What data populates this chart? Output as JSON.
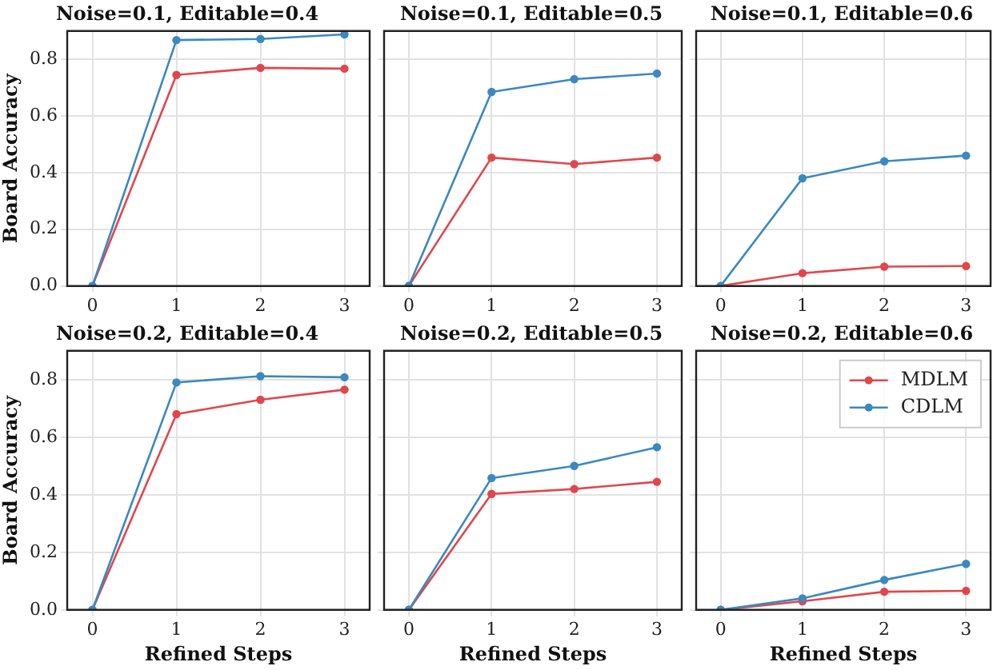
{
  "chart_data": [
    {
      "type": "line",
      "title": "Noise=0.1, Editable=0.4",
      "ylabel": "Board Accuracy",
      "x": [
        0,
        1,
        2,
        3
      ],
      "xlim": [
        -0.3,
        3.3
      ],
      "xticks": [
        0,
        1,
        2,
        3
      ],
      "ylim": [
        0,
        0.9
      ],
      "yticks": [
        {
          "value": 0,
          "label": "0.0"
        },
        0.2,
        0.4,
        0.6,
        0.8
      ],
      "grid": true,
      "marker": "circle",
      "series": [
        {
          "color": "#e0474c",
          "values": [
            0,
            0.745,
            0.77,
            0.767
          ]
        },
        {
          "color": "#3c88c0",
          "values": [
            0,
            0.868,
            0.872,
            0.888
          ]
        }
      ]
    },
    {
      "type": "line",
      "title": "Noise=0.1, Editable=0.5",
      "x": [
        0,
        1,
        2,
        3
      ],
      "xlim": [
        -0.3,
        3.3
      ],
      "xticks": [
        0,
        1,
        2,
        3
      ],
      "ylim": [
        0,
        0.9
      ],
      "yticks": [
        0,
        0.2,
        0.4,
        0.6,
        0.8
      ],
      "grid": true,
      "marker": "circle",
      "tick_labels": "x",
      "series": [
        {
          "color": "#e0474c",
          "values": [
            0,
            0.453,
            0.43,
            0.453
          ]
        },
        {
          "color": "#3c88c0",
          "values": [
            0,
            0.685,
            0.73,
            0.75
          ]
        }
      ]
    },
    {
      "type": "line",
      "title": "Noise=0.1, Editable=0.6",
      "x": [
        0,
        1,
        2,
        3
      ],
      "xlim": [
        -0.3,
        3.3
      ],
      "xticks": [
        0,
        1,
        2,
        3
      ],
      "ylim": [
        0,
        0.9
      ],
      "yticks": [
        0,
        0.2,
        0.4,
        0.6,
        0.8
      ],
      "grid": true,
      "marker": "circle",
      "tick_labels": "x",
      "series": [
        {
          "color": "#e0474c",
          "values": [
            0,
            0.045,
            0.068,
            0.07
          ]
        },
        {
          "color": "#3c88c0",
          "values": [
            0,
            0.38,
            0.44,
            0.46
          ]
        }
      ]
    },
    {
      "type": "line",
      "title": "Noise=0.2, Editable=0.4",
      "xlabel": "Refined Steps",
      "ylabel": "Board Accuracy",
      "x": [
        0,
        1,
        2,
        3
      ],
      "xlim": [
        -0.3,
        3.3
      ],
      "xticks": [
        0,
        1,
        2,
        3
      ],
      "ylim": [
        0,
        0.9
      ],
      "yticks": [
        {
          "value": 0,
          "label": "0.0"
        },
        0.2,
        0.4,
        0.6,
        0.8
      ],
      "grid": true,
      "marker": "circle",
      "series": [
        {
          "color": "#e0474c",
          "values": [
            0,
            0.68,
            0.73,
            0.765
          ]
        },
        {
          "color": "#3c88c0",
          "values": [
            0,
            0.79,
            0.812,
            0.808
          ]
        }
      ]
    },
    {
      "type": "line",
      "title": "Noise=0.2, Editable=0.5",
      "xlabel": "Refined Steps",
      "x": [
        0,
        1,
        2,
        3
      ],
      "xlim": [
        -0.3,
        3.3
      ],
      "xticks": [
        0,
        1,
        2,
        3
      ],
      "ylim": [
        0,
        0.9
      ],
      "yticks": [
        0,
        0.2,
        0.4,
        0.6,
        0.8
      ],
      "grid": true,
      "marker": "circle",
      "tick_labels": "x",
      "series": [
        {
          "color": "#e0474c",
          "values": [
            0,
            0.403,
            0.42,
            0.445
          ]
        },
        {
          "color": "#3c88c0",
          "values": [
            0,
            0.458,
            0.5,
            0.565
          ]
        }
      ]
    },
    {
      "type": "line",
      "title": "Noise=0.2, Editable=0.6",
      "xlabel": "Refined Steps",
      "x": [
        0,
        1,
        2,
        3
      ],
      "xlim": [
        -0.3,
        3.3
      ],
      "xticks": [
        0,
        1,
        2,
        3
      ],
      "ylim": [
        0,
        0.9
      ],
      "yticks": [
        0,
        0.2,
        0.4,
        0.6,
        0.8
      ],
      "grid": true,
      "marker": "circle",
      "tick_labels": "x",
      "legend": "top right",
      "series": [
        {
          "name": "MDLM",
          "color": "#e0474c",
          "values": [
            0,
            0.03,
            0.063,
            0.066
          ]
        },
        {
          "name": "CDLM",
          "color": "#3c88c0",
          "values": [
            0,
            0.04,
            0.104,
            0.16
          ]
        }
      ]
    }
  ]
}
